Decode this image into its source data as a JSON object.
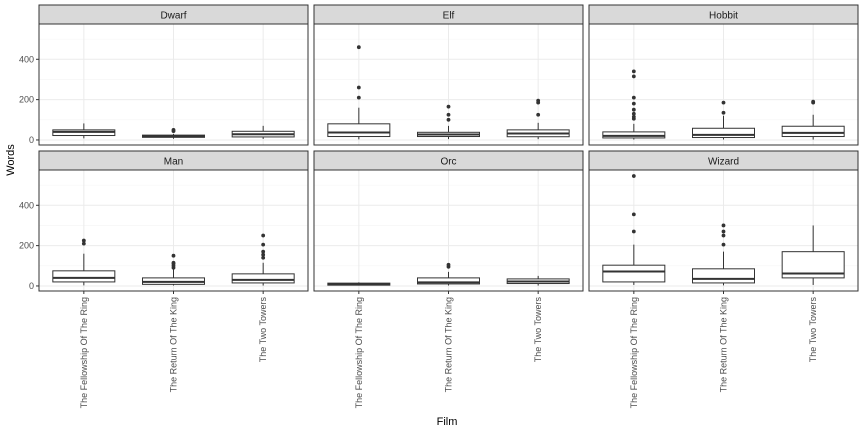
{
  "chart_data": {
    "type": "boxplot",
    "facet_layout": {
      "rows": 2,
      "cols": 3,
      "scales": "fixed"
    },
    "xlabel": "Film",
    "ylabel": "Words",
    "categories": [
      "The Fellowship Of The Ring",
      "The Return Of The King",
      "The Two Towers"
    ],
    "y_ticks": [
      0,
      200,
      400
    ],
    "ylim": [
      -25,
      575
    ],
    "grid": true,
    "facets": [
      {
        "label": "Dwarf",
        "boxes": [
          {
            "category": "The Fellowship Of The Ring",
            "min": 8,
            "q1": 22,
            "median": 40,
            "q3": 50,
            "max": 82,
            "outliers": []
          },
          {
            "category": "The Return Of The King",
            "min": 6,
            "q1": 13,
            "median": 18,
            "q3": 24,
            "max": 30,
            "outliers": [
              44,
              50
            ]
          },
          {
            "category": "The Two Towers",
            "min": 5,
            "q1": 15,
            "median": 28,
            "q3": 43,
            "max": 70,
            "outliers": []
          }
        ]
      },
      {
        "label": "Elf",
        "boxes": [
          {
            "category": "The Fellowship Of The Ring",
            "min": 3,
            "q1": 17,
            "median": 37,
            "q3": 80,
            "max": 160,
            "outliers": [
              210,
              260,
              460
            ]
          },
          {
            "category": "The Return Of The King",
            "min": 4,
            "q1": 17,
            "median": 27,
            "q3": 38,
            "max": 70,
            "outliers": [
              100,
              125,
              165
            ]
          },
          {
            "category": "The Two Towers",
            "min": 4,
            "q1": 16,
            "median": 32,
            "q3": 50,
            "max": 85,
            "outliers": [
              125,
              185,
              195
            ]
          }
        ]
      },
      {
        "label": "Hobbit",
        "boxes": [
          {
            "category": "The Fellowship Of The Ring",
            "min": 2,
            "q1": 10,
            "median": 20,
            "q3": 40,
            "max": 80,
            "outliers": [
              105,
              115,
              130,
              150,
              180,
              210,
              315,
              340
            ]
          },
          {
            "category": "The Return Of The King",
            "min": 2,
            "q1": 12,
            "median": 25,
            "q3": 58,
            "max": 120,
            "outliers": [
              135,
              185
            ]
          },
          {
            "category": "The Two Towers",
            "min": 2,
            "q1": 17,
            "median": 35,
            "q3": 68,
            "max": 125,
            "outliers": [
              185,
              190
            ]
          }
        ]
      },
      {
        "label": "Man",
        "boxes": [
          {
            "category": "The Fellowship Of The Ring",
            "min": 3,
            "q1": 20,
            "median": 40,
            "q3": 75,
            "max": 160,
            "outliers": [
              210,
              225
            ]
          },
          {
            "category": "The Return Of The King",
            "min": 2,
            "q1": 8,
            "median": 20,
            "q3": 40,
            "max": 85,
            "outliers": [
              90,
              100,
              110,
              115,
              150
            ]
          },
          {
            "category": "The Two Towers",
            "min": 2,
            "q1": 15,
            "median": 30,
            "q3": 60,
            "max": 115,
            "outliers": [
              140,
              155,
              170,
              205,
              250
            ]
          }
        ]
      },
      {
        "label": "Orc",
        "boxes": [
          {
            "category": "The Fellowship Of The Ring",
            "min": 2,
            "q1": 4,
            "median": 8,
            "q3": 14,
            "max": 18,
            "outliers": []
          },
          {
            "category": "The Return Of The King",
            "min": 2,
            "q1": 10,
            "median": 18,
            "q3": 40,
            "max": 70,
            "outliers": [
              95,
              105
            ]
          },
          {
            "category": "The Two Towers",
            "min": 2,
            "q1": 12,
            "median": 22,
            "q3": 35,
            "max": 50,
            "outliers": []
          }
        ]
      },
      {
        "label": "Wizard",
        "boxes": [
          {
            "category": "The Fellowship Of The Ring",
            "min": 5,
            "q1": 20,
            "median": 72,
            "q3": 103,
            "max": 205,
            "outliers": [
              270,
              355,
              545
            ]
          },
          {
            "category": "The Return Of The King",
            "min": 3,
            "q1": 15,
            "median": 35,
            "q3": 85,
            "max": 170,
            "outliers": [
              205,
              250,
              270,
              300
            ]
          },
          {
            "category": "The Two Towers",
            "min": 5,
            "q1": 40,
            "median": 62,
            "q3": 170,
            "max": 300,
            "outliers": []
          }
        ]
      }
    ]
  }
}
